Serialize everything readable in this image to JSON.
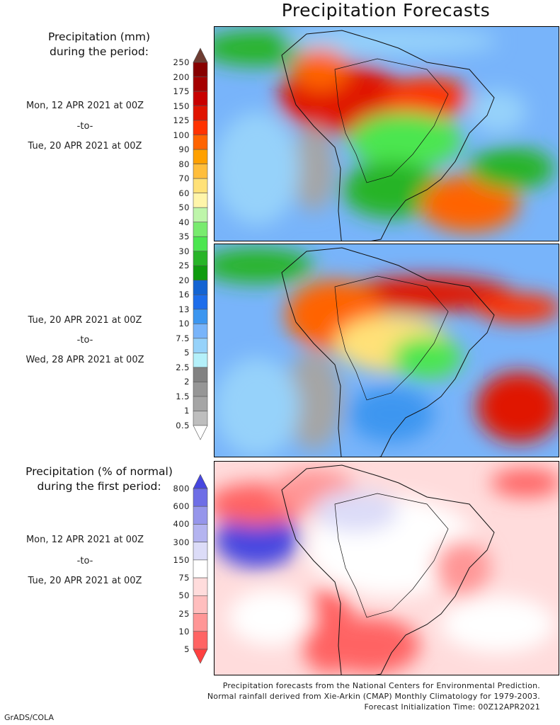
{
  "title": "Precipitation Forecasts",
  "panel1": {
    "header": [
      "Precipitation (mm)",
      "during the period:"
    ],
    "start": "Mon, 12 APR 2021 at 00Z",
    "sep": "-to-",
    "end": "Tue, 20 APR 2021 at 00Z"
  },
  "panel2": {
    "start": "Tue, 20 APR 2021 at 00Z",
    "sep": "-to-",
    "end": "Wed, 28 APR 2021 at 00Z"
  },
  "panel3": {
    "header": [
      "Precipitation (% of normal)",
      "during the first period:"
    ],
    "start": "Mon, 12 APR 2021 at 00Z",
    "sep": "-to-",
    "end": "Tue, 20 APR 2021 at 00Z"
  },
  "colorbar_mm": {
    "labels": [
      "250",
      "200",
      "175",
      "150",
      "125",
      "100",
      "90",
      "80",
      "70",
      "60",
      "50",
      "40",
      "35",
      "30",
      "25",
      "20",
      "16",
      "13",
      "10",
      "7.5",
      "5",
      "2.5",
      "2",
      "1.5",
      "1",
      "0.5"
    ],
    "colors": [
      "#870000",
      "#a50000",
      "#c80000",
      "#e01400",
      "#ff3200",
      "#ff6400",
      "#ffa000",
      "#ffbe3c",
      "#ffe178",
      "#fff5aa",
      "#bef5aa",
      "#78eb6e",
      "#4be650",
      "#28b428",
      "#0f9b0f",
      "#1464d2",
      "#1e6eeb",
      "#3c96f0",
      "#78b4fa",
      "#96d2fa",
      "#b4f0fa",
      "#828282",
      "#969696",
      "#a5a5a5",
      "#bebebe"
    ],
    "over": "#6e3c32",
    "under": "#ffffff"
  },
  "colorbar_pct": {
    "labels": [
      "800",
      "600",
      "400",
      "300",
      "150",
      "75",
      "50",
      "25",
      "10",
      "5"
    ],
    "colors": [
      "#6e6ee6",
      "#9696eb",
      "#b4b4f0",
      "#dcdcf8",
      "#ffffff",
      "#ffdcdc",
      "#ffbebe",
      "#ff9696",
      "#ff6464"
    ],
    "over": "#4646e0",
    "under": "#ff4040"
  },
  "footer": [
    "Precipitation forecasts from the National Centers for Environmental Prediction.",
    "Normal rainfall derived from Xie-Arkin (CMAP) Monthly Climatology for 1979-2003.",
    "Forecast Initialization Time: 00Z12APR2021"
  ],
  "credit": "GrADS/COLA"
}
